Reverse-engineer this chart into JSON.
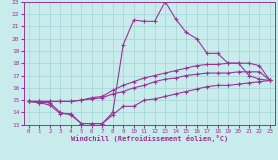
{
  "xlabel": "Windchill (Refroidissement éolien,°C)",
  "background_color": "#c8ecec",
  "grid_color": "#a8d8d8",
  "line_color": "#993399",
  "xlim": [
    -0.5,
    23.5
  ],
  "ylim": [
    13,
    23
  ],
  "yticks": [
    13,
    14,
    15,
    16,
    17,
    18,
    19,
    20,
    21,
    22,
    23
  ],
  "xticks": [
    0,
    1,
    2,
    3,
    4,
    5,
    6,
    7,
    8,
    9,
    10,
    11,
    12,
    13,
    14,
    15,
    16,
    17,
    18,
    19,
    20,
    21,
    22,
    23
  ],
  "series": {
    "s1": [
      14.9,
      14.8,
      14.8,
      14.0,
      13.8,
      13.1,
      13.1,
      13.1,
      13.8,
      14.5,
      14.5,
      15.0,
      15.1,
      15.3,
      15.5,
      15.7,
      15.9,
      16.1,
      16.2,
      16.2,
      16.3,
      16.4,
      16.5,
      16.6
    ],
    "s2": [
      14.9,
      14.9,
      14.9,
      14.9,
      14.9,
      15.0,
      15.1,
      15.2,
      15.5,
      15.7,
      16.0,
      16.2,
      16.5,
      16.7,
      16.8,
      17.0,
      17.1,
      17.2,
      17.2,
      17.2,
      17.3,
      17.3,
      17.3,
      16.6
    ],
    "s3": [
      14.9,
      14.9,
      14.9,
      14.9,
      14.9,
      15.0,
      15.2,
      15.3,
      15.8,
      16.2,
      16.5,
      16.8,
      17.0,
      17.2,
      17.4,
      17.6,
      17.8,
      17.9,
      17.9,
      18.0,
      18.0,
      18.0,
      17.8,
      16.6
    ],
    "s4": [
      14.9,
      14.8,
      14.6,
      13.9,
      13.9,
      13.1,
      13.1,
      13.1,
      14.0,
      19.5,
      21.5,
      21.4,
      21.4,
      23.0,
      21.6,
      20.5,
      20.0,
      18.8,
      18.8,
      18.0,
      18.0,
      17.0,
      16.7,
      16.6
    ]
  }
}
